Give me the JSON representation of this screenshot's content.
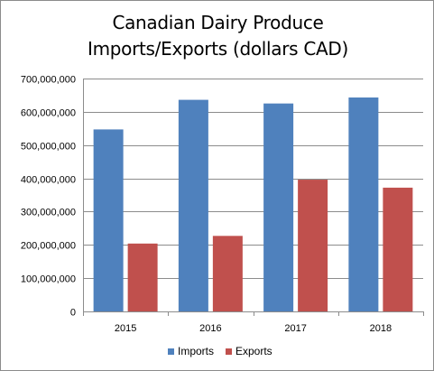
{
  "chart_data": {
    "type": "bar",
    "title": [
      "Canadian Dairy Produce",
      "Imports/Exports (dollars CAD)"
    ],
    "categories": [
      "2015",
      "2016",
      "2017",
      "2018"
    ],
    "series": [
      {
        "name": "Imports",
        "color": "#4f81bd",
        "values": [
          547000000,
          636000000,
          625000000,
          643000000
        ]
      },
      {
        "name": "Exports",
        "color": "#c0504d",
        "values": [
          204000000,
          227000000,
          396000000,
          372000000
        ]
      }
    ],
    "ylim": [
      0,
      700000000
    ],
    "yticks": [
      "0",
      "100,000,000",
      "200,000,000",
      "300,000,000",
      "400,000,000",
      "500,000,000",
      "600,000,000",
      "700,000,000"
    ],
    "grid": true,
    "legend_position": "bottom"
  }
}
